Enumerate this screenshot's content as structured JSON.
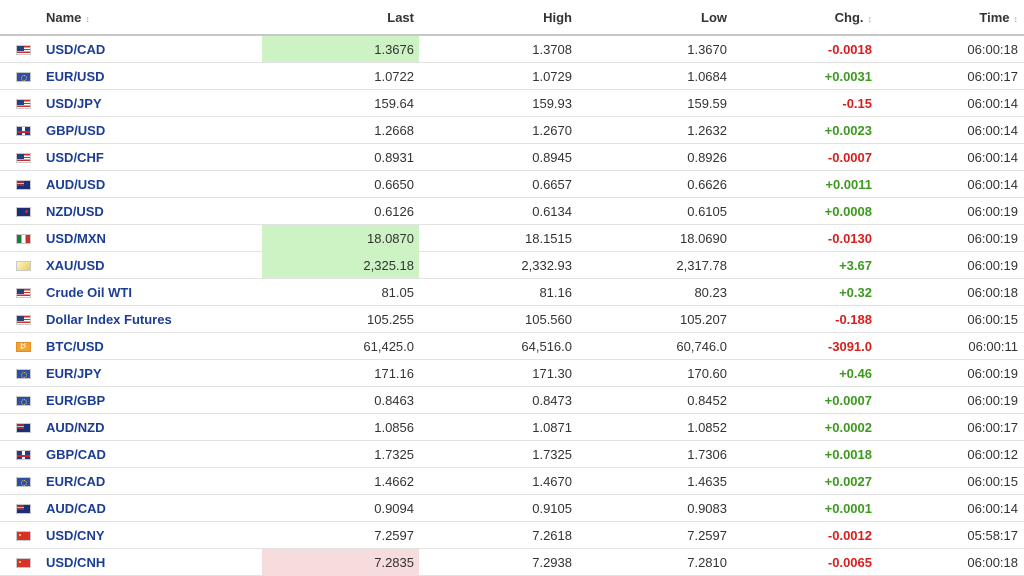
{
  "headers": {
    "name": "Name",
    "last": "Last",
    "high": "High",
    "low": "Low",
    "chg": "Chg.",
    "time": "Time",
    "sort_glyph": "↕"
  },
  "colors": {
    "link": "#1c3d94",
    "positive": "#3c9a1e",
    "negative": "#d91e1e",
    "flash_up": "#cdf2c4",
    "flash_down": "#f6dcdc"
  },
  "rows": [
    {
      "flag": "us-flag-icon",
      "name": "USD/CAD",
      "last": "1.3676",
      "high": "1.3708",
      "low": "1.3670",
      "chg": "-0.0018",
      "time": "06:00:18",
      "dir": "down",
      "flash": "green"
    },
    {
      "flag": "eu-flag-icon",
      "name": "EUR/USD",
      "last": "1.0722",
      "high": "1.0729",
      "low": "1.0684",
      "chg": "+0.0031",
      "time": "06:00:17",
      "dir": "up",
      "flash": ""
    },
    {
      "flag": "us-flag-icon",
      "name": "USD/JPY",
      "last": "159.64",
      "high": "159.93",
      "low": "159.59",
      "chg": "-0.15",
      "time": "06:00:14",
      "dir": "down",
      "flash": ""
    },
    {
      "flag": "gb-flag-icon",
      "name": "GBP/USD",
      "last": "1.2668",
      "high": "1.2670",
      "low": "1.2632",
      "chg": "+0.0023",
      "time": "06:00:14",
      "dir": "up",
      "flash": ""
    },
    {
      "flag": "us-flag-icon",
      "name": "USD/CHF",
      "last": "0.8931",
      "high": "0.8945",
      "low": "0.8926",
      "chg": "-0.0007",
      "time": "06:00:14",
      "dir": "down",
      "flash": ""
    },
    {
      "flag": "au-flag-icon",
      "name": "AUD/USD",
      "last": "0.6650",
      "high": "0.6657",
      "low": "0.6626",
      "chg": "+0.0011",
      "time": "06:00:14",
      "dir": "up",
      "flash": ""
    },
    {
      "flag": "nz-flag-icon",
      "name": "NZD/USD",
      "last": "0.6126",
      "high": "0.6134",
      "low": "0.6105",
      "chg": "+0.0008",
      "time": "06:00:19",
      "dir": "up",
      "flash": ""
    },
    {
      "flag": "mx-flag-icon",
      "name": "USD/MXN",
      "last": "18.0870",
      "high": "18.1515",
      "low": "18.0690",
      "chg": "-0.0130",
      "time": "06:00:19",
      "dir": "down",
      "flash": "green"
    },
    {
      "flag": "gold-icon",
      "name": "XAU/USD",
      "last": "2,325.18",
      "high": "2,332.93",
      "low": "2,317.78",
      "chg": "+3.67",
      "time": "06:00:19",
      "dir": "up",
      "flash": "green"
    },
    {
      "flag": "us-flag-icon",
      "name": "Crude Oil WTI",
      "last": "81.05",
      "high": "81.16",
      "low": "80.23",
      "chg": "+0.32",
      "time": "06:00:18",
      "dir": "up",
      "flash": ""
    },
    {
      "flag": "us-flag-icon",
      "name": "Dollar Index Futures",
      "last": "105.255",
      "high": "105.560",
      "low": "105.207",
      "chg": "-0.188",
      "time": "06:00:15",
      "dir": "down",
      "flash": ""
    },
    {
      "flag": "bitcoin-icon",
      "name": "BTC/USD",
      "last": "61,425.0",
      "high": "64,516.0",
      "low": "60,746.0",
      "chg": "-3091.0",
      "time": "06:00:11",
      "dir": "down",
      "flash": ""
    },
    {
      "flag": "eu-flag-icon",
      "name": "EUR/JPY",
      "last": "171.16",
      "high": "171.30",
      "low": "170.60",
      "chg": "+0.46",
      "time": "06:00:19",
      "dir": "up",
      "flash": ""
    },
    {
      "flag": "eu-flag-icon",
      "name": "EUR/GBP",
      "last": "0.8463",
      "high": "0.8473",
      "low": "0.8452",
      "chg": "+0.0007",
      "time": "06:00:19",
      "dir": "up",
      "flash": ""
    },
    {
      "flag": "au-flag-icon",
      "name": "AUD/NZD",
      "last": "1.0856",
      "high": "1.0871",
      "low": "1.0852",
      "chg": "+0.0002",
      "time": "06:00:17",
      "dir": "up",
      "flash": ""
    },
    {
      "flag": "gb-flag-icon",
      "name": "GBP/CAD",
      "last": "1.7325",
      "high": "1.7325",
      "low": "1.7306",
      "chg": "+0.0018",
      "time": "06:00:12",
      "dir": "up",
      "flash": ""
    },
    {
      "flag": "eu-flag-icon",
      "name": "EUR/CAD",
      "last": "1.4662",
      "high": "1.4670",
      "low": "1.4635",
      "chg": "+0.0027",
      "time": "06:00:15",
      "dir": "up",
      "flash": ""
    },
    {
      "flag": "au-flag-icon",
      "name": "AUD/CAD",
      "last": "0.9094",
      "high": "0.9105",
      "low": "0.9083",
      "chg": "+0.0001",
      "time": "06:00:14",
      "dir": "up",
      "flash": ""
    },
    {
      "flag": "cn-flag-icon",
      "name": "USD/CNY",
      "last": "7.2597",
      "high": "7.2618",
      "low": "7.2597",
      "chg": "-0.0012",
      "time": "05:58:17",
      "dir": "down",
      "flash": ""
    },
    {
      "flag": "cn-flag-icon",
      "name": "USD/CNH",
      "last": "7.2835",
      "high": "7.2938",
      "low": "7.2810",
      "chg": "-0.0065",
      "time": "06:00:18",
      "dir": "down",
      "flash": "red"
    }
  ]
}
